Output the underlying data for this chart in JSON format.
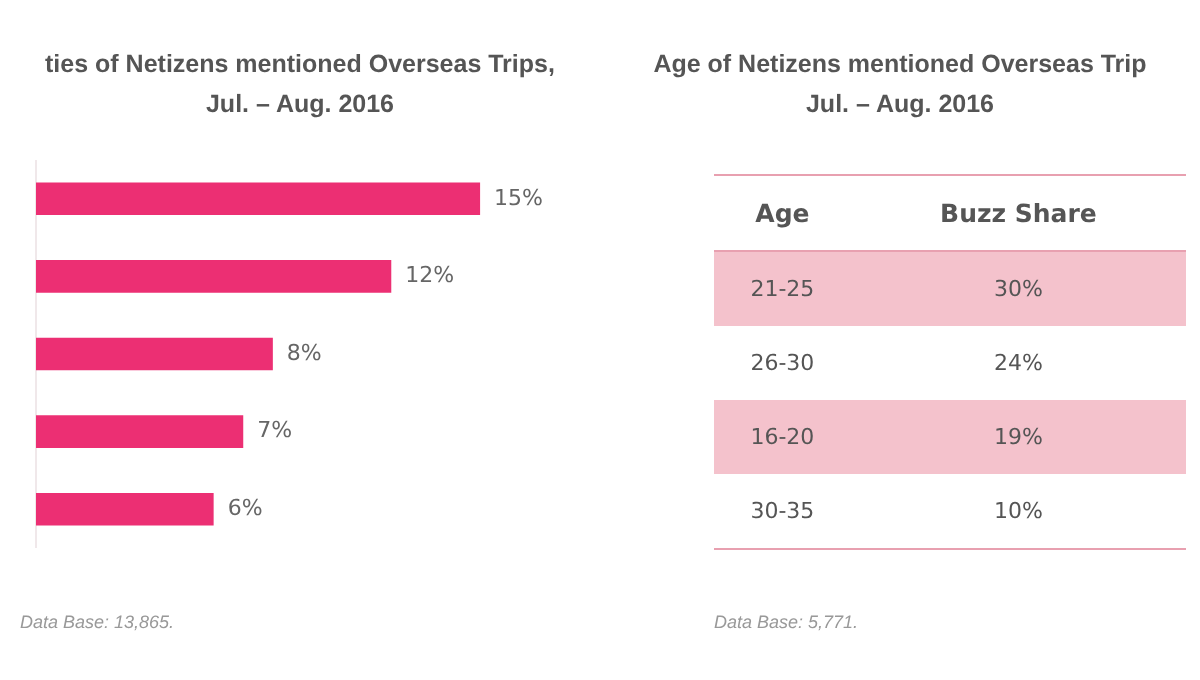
{
  "chart_data": [
    {
      "type": "bar",
      "orientation": "horizontal",
      "title": "ties of Netizens mentioned Overseas Trips,",
      "subtitle": "Jul. – Aug. 2016",
      "categories": [
        null,
        null,
        null,
        null,
        null
      ],
      "values": [
        15,
        12,
        8,
        7,
        6
      ],
      "color": "#ec2f73",
      "value_labels": [
        "15%",
        "12%",
        "8%",
        "7%",
        "6%"
      ],
      "annotations": [
        "Data Base: 13,865."
      ]
    },
    {
      "type": "other",
      "title": "Age of Netizens mentioned Overseas Trip",
      "subtitle": "Jul. – Aug. 2016",
      "xlabel": "Age",
      "ylabel": "Buzz Share",
      "categories": [
        "21-25",
        "26-30",
        "16-20",
        "30-35"
      ],
      "value_labels": [
        "30%",
        "24%",
        "19%",
        "10%"
      ],
      "colors": [
        "#f4c2cc",
        "#ffffff",
        "#f4c2cc",
        "#ffffff"
      ],
      "annotations": [
        "Data Base: 5,771."
      ]
    }
  ]
}
